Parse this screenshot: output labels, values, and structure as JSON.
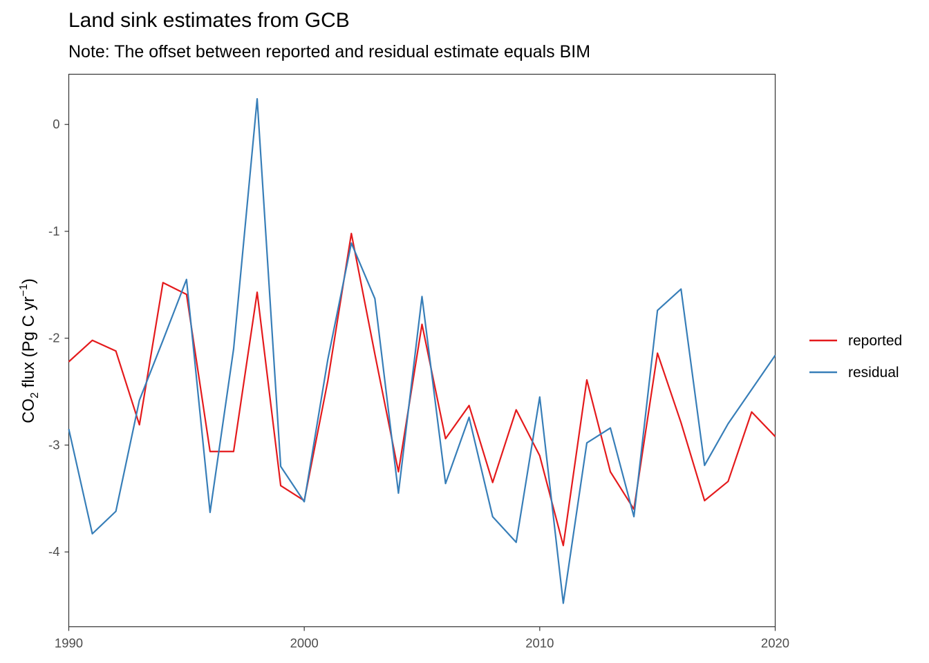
{
  "chart_data": {
    "type": "line",
    "title": "Land sink estimates from GCB",
    "subtitle": "Note: The offset between reported and residual estimate equals BIM",
    "xlabel": "",
    "ylabel": {
      "base": "CO",
      "sub": "2",
      "mid": " flux (Pg C yr",
      "sup": "−1",
      "end": ")"
    },
    "xlim": [
      1990,
      2020
    ],
    "ylim": [
      -4.7,
      0.47
    ],
    "x_ticks": [
      1990,
      2000,
      2010,
      2020
    ],
    "y_ticks": [
      0,
      -1,
      -2,
      -3,
      -4
    ],
    "grid": false,
    "legend_position": "right",
    "x": [
      1990,
      1991,
      1992,
      1993,
      1994,
      1995,
      1996,
      1997,
      1998,
      1999,
      2000,
      2001,
      2002,
      2003,
      2004,
      2005,
      2006,
      2007,
      2008,
      2009,
      2010,
      2011,
      2012,
      2013,
      2014,
      2015,
      2016,
      2017,
      2018,
      2019,
      2020
    ],
    "series": [
      {
        "name": "reported",
        "color": "#e41a1c",
        "values": [
          -2.22,
          -2.02,
          -2.12,
          -2.81,
          -1.48,
          -1.59,
          -3.06,
          -3.06,
          -1.57,
          -3.38,
          -3.52,
          -2.4,
          -1.02,
          -2.15,
          -3.25,
          -1.87,
          -2.94,
          -2.63,
          -3.35,
          -2.67,
          -3.1,
          -3.94,
          -2.39,
          -3.25,
          -3.6,
          -2.14,
          -2.79,
          -3.52,
          -3.34,
          -2.69,
          -2.92
        ]
      },
      {
        "name": "residual",
        "color": "#377eb8",
        "values": [
          -2.85,
          -3.83,
          -3.62,
          -2.58,
          -2.02,
          -1.45,
          -3.63,
          -2.1,
          0.24,
          -3.2,
          -3.53,
          -2.2,
          -1.11,
          -1.63,
          -3.45,
          -1.61,
          -3.36,
          -2.74,
          -3.67,
          -3.91,
          -2.55,
          -4.48,
          -2.98,
          -2.84,
          -3.67,
          -1.74,
          -1.54,
          -3.19,
          -2.8,
          -2.48,
          -2.16
        ]
      }
    ]
  }
}
